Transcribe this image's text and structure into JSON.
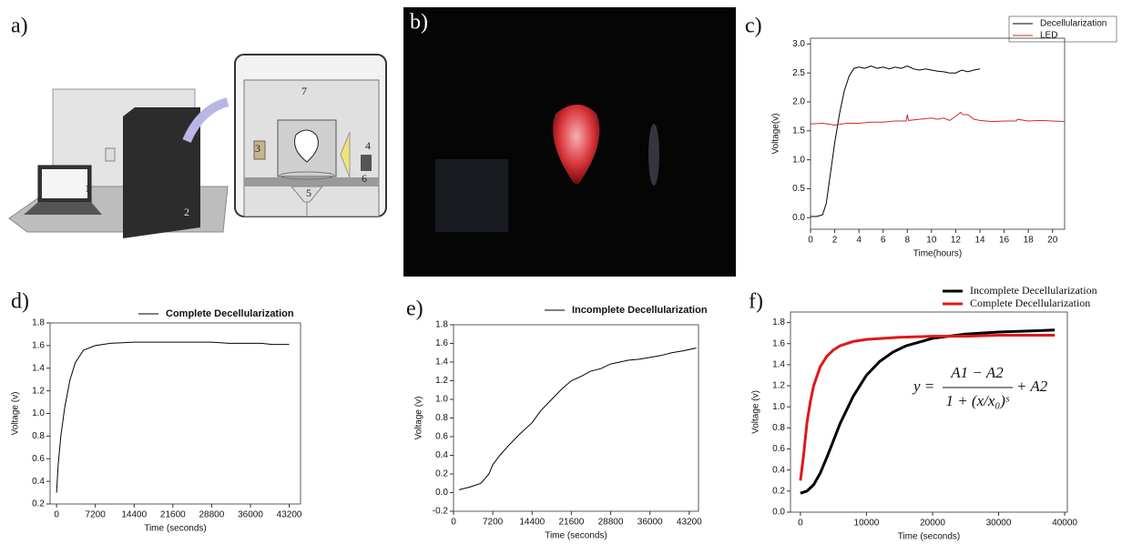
{
  "figure": {
    "a": {
      "label": "a)",
      "numbers": [
        "1",
        "2",
        "3",
        "4",
        "5",
        "6",
        "7"
      ]
    },
    "b": {
      "label": "b)"
    }
  },
  "chart_data": [
    {
      "type": "line",
      "label": "c)",
      "x_label": "Time(hours)",
      "y_label": "Voltage(v)",
      "xlim": [
        0,
        21
      ],
      "ylim": [
        -0.2,
        3.1
      ],
      "xticks": [
        0,
        2,
        4,
        6,
        8,
        10,
        12,
        14,
        16,
        18,
        20
      ],
      "yticks": [
        {
          "value": 0,
          "label": "0.0"
        },
        0.5,
        {
          "value": 1,
          "label": "1.0"
        },
        1.5,
        {
          "value": 2,
          "label": "2.0"
        },
        2.5,
        {
          "value": 3,
          "label": "3.0"
        }
      ],
      "series": [
        {
          "name": "Decellularization",
          "color": "#000000",
          "width": 1,
          "x": [
            0,
            0.5,
            1,
            1.3,
            1.6,
            2,
            2.4,
            2.8,
            3.2,
            3.6,
            4,
            4.5,
            5,
            5.5,
            6,
            6.5,
            7,
            7.5,
            8,
            8.5,
            9,
            9.5,
            10,
            10.5,
            11,
            11.5,
            12,
            12.5,
            13,
            13.5,
            14
          ],
          "values": [
            0.02,
            0.02,
            0.05,
            0.25,
            0.7,
            1.3,
            1.8,
            2.2,
            2.45,
            2.58,
            2.6,
            2.58,
            2.62,
            2.58,
            2.6,
            2.57,
            2.6,
            2.58,
            2.62,
            2.57,
            2.55,
            2.57,
            2.55,
            2.53,
            2.52,
            2.5,
            2.5,
            2.55,
            2.52,
            2.55,
            2.57
          ]
        },
        {
          "name": "LED",
          "color": "#d42a2a",
          "width": 1,
          "x": [
            0,
            1,
            2,
            3,
            4,
            5,
            6,
            7,
            7.9,
            8,
            8.1,
            9,
            10,
            10.5,
            11,
            11.5,
            12,
            12.4,
            12.6,
            13,
            13.5,
            14,
            15,
            16,
            17,
            17.1,
            18,
            19,
            20,
            21
          ],
          "values": [
            1.62,
            1.63,
            1.6,
            1.63,
            1.63,
            1.65,
            1.65,
            1.67,
            1.67,
            1.78,
            1.68,
            1.7,
            1.72,
            1.7,
            1.72,
            1.68,
            1.75,
            1.82,
            1.78,
            1.78,
            1.7,
            1.68,
            1.66,
            1.67,
            1.67,
            1.7,
            1.67,
            1.68,
            1.67,
            1.66
          ]
        }
      ]
    },
    {
      "type": "line",
      "label": "d)",
      "x_label": "Time (seconds)",
      "y_label": "Voltage (v)",
      "xlim": [
        -1200,
        45300
      ],
      "ylim": [
        0.2,
        1.8
      ],
      "xticks": [
        0,
        7200,
        14400,
        21600,
        28800,
        36000,
        43200
      ],
      "yticks": [
        0.2,
        0.4,
        0.6,
        0.8,
        {
          "value": 1,
          "label": "1.0"
        },
        1.2,
        1.4,
        1.6,
        1.8
      ],
      "series": [
        {
          "name": "Complete Decellularization",
          "color": "#000000",
          "width": 1,
          "x": [
            0,
            300,
            800,
            1500,
            2500,
            3500,
            5000,
            7200,
            10000,
            14400,
            18000,
            21600,
            25000,
            28800,
            32000,
            36000,
            38000,
            40000,
            43200
          ],
          "values": [
            0.3,
            0.55,
            0.8,
            1.05,
            1.3,
            1.45,
            1.56,
            1.6,
            1.62,
            1.63,
            1.63,
            1.63,
            1.63,
            1.63,
            1.62,
            1.62,
            1.62,
            1.61,
            1.61
          ]
        }
      ]
    },
    {
      "type": "line",
      "label": "e)",
      "x_label": "Time (seconds)",
      "y_label": "Voltage (v)",
      "xlim": [
        0,
        44900
      ],
      "ylim": [
        -0.2,
        1.8
      ],
      "xticks": [
        0,
        7200,
        14400,
        21600,
        28800,
        36000,
        43200
      ],
      "yticks": [
        -0.2,
        {
          "value": 0,
          "label": "0.0"
        },
        0.2,
        0.4,
        0.6,
        0.8,
        {
          "value": 1,
          "label": "1.0"
        },
        1.2,
        1.4,
        1.6,
        1.8
      ],
      "series": [
        {
          "name": "Incomplete Decellularization",
          "color": "#000000",
          "width": 1,
          "x": [
            1000,
            3000,
            5000,
            6500,
            7200,
            8500,
            10000,
            12000,
            14400,
            16000,
            18000,
            20000,
            21600,
            23500,
            25000,
            27000,
            28800,
            30500,
            32000,
            34000,
            36000,
            38000,
            40000,
            42000,
            44500
          ],
          "values": [
            0.03,
            0.06,
            0.1,
            0.2,
            0.3,
            0.4,
            0.5,
            0.62,
            0.75,
            0.88,
            1.0,
            1.12,
            1.2,
            1.25,
            1.3,
            1.33,
            1.38,
            1.4,
            1.42,
            1.43,
            1.45,
            1.47,
            1.5,
            1.52,
            1.55
          ]
        }
      ]
    },
    {
      "type": "line",
      "label": "f)",
      "x_label": "Time (seconds)",
      "y_label": "Voltage (v)",
      "xlim": [
        -1500,
        40400
      ],
      "ylim": [
        0,
        1.9
      ],
      "xticks": [
        0,
        10000,
        20000,
        30000,
        40000
      ],
      "yticks": [
        {
          "value": 0,
          "label": "0.0"
        },
        0.2,
        0.4,
        0.6,
        0.8,
        {
          "value": 1,
          "label": "1.0"
        },
        1.2,
        1.4,
        1.6,
        1.8
      ],
      "equation": {
        "lhs": "y =",
        "numerator": "A1 − A2",
        "denominator": "1 + (x/x₀)ˢ",
        "tail": "+ A2"
      },
      "series": [
        {
          "name": "Incomplete Decellularization",
          "color": "#000000",
          "width": 3,
          "x": [
            0,
            1000,
            2000,
            3000,
            4000,
            5000,
            6000,
            8000,
            10000,
            12000,
            14000,
            16000,
            20000,
            25000,
            30000,
            35000,
            38500
          ],
          "values": [
            0.18,
            0.2,
            0.26,
            0.37,
            0.52,
            0.68,
            0.84,
            1.1,
            1.3,
            1.43,
            1.52,
            1.58,
            1.65,
            1.69,
            1.71,
            1.72,
            1.73
          ]
        },
        {
          "name": "Complete Decellularization",
          "color": "#e01818",
          "width": 3,
          "x": [
            0,
            500,
            1000,
            1500,
            2000,
            3000,
            4000,
            5000,
            6000,
            8000,
            10000,
            15000,
            20000,
            25000,
            30000,
            38500
          ],
          "values": [
            0.3,
            0.55,
            0.85,
            1.05,
            1.2,
            1.38,
            1.48,
            1.54,
            1.58,
            1.62,
            1.64,
            1.66,
            1.67,
            1.67,
            1.68,
            1.68
          ]
        }
      ]
    }
  ]
}
